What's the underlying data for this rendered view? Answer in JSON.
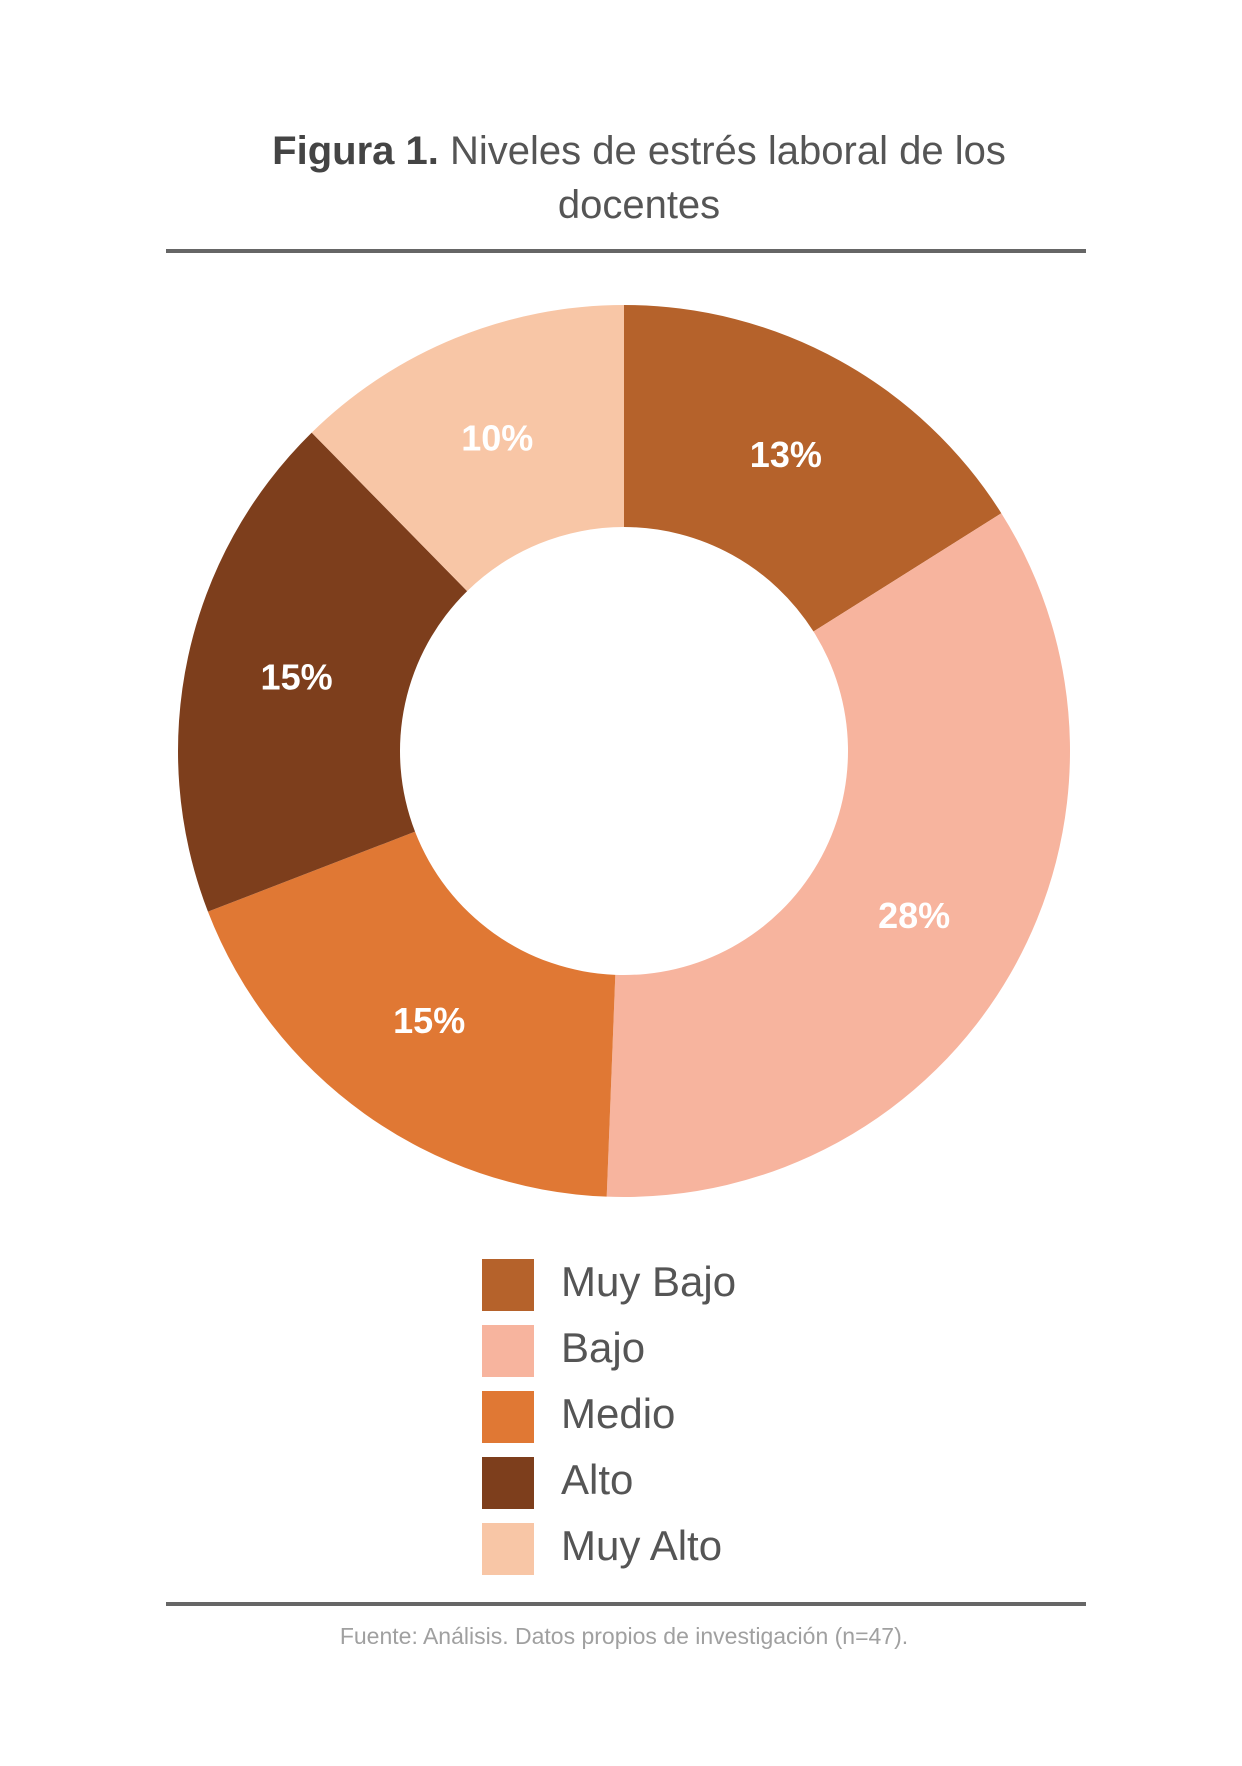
{
  "chart_data": {
    "type": "donut",
    "title_label": "Figura 1.",
    "title": "Niveles de estrés laboral de los docentes",
    "categories": [
      "Muy Bajo",
      "Bajo",
      "Medio",
      "Alto",
      "Muy Alto"
    ],
    "values": [
      13,
      28,
      15,
      15,
      10
    ],
    "value_labels": [
      "13%",
      "28%",
      "15%",
      "15%",
      "10%"
    ],
    "colors": [
      "#b5622b",
      "#f7b49e",
      "#e07834",
      "#7d3e1c",
      "#f8c6a6"
    ],
    "source": "Fuente: Análisis. Datos propios de investigación (n=47)."
  }
}
